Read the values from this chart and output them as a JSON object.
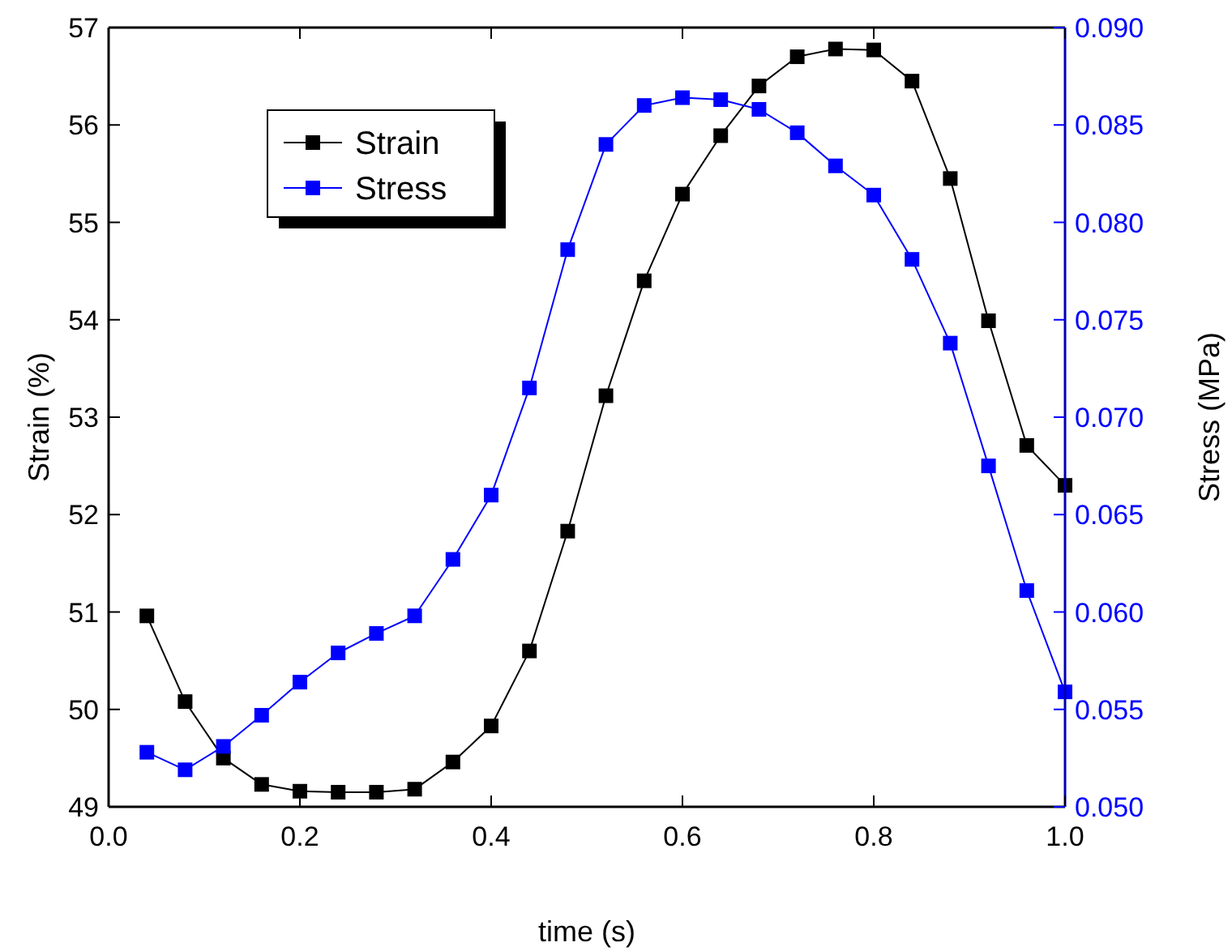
{
  "chart_data": {
    "type": "line",
    "xlabel": "time (s)",
    "ylabel": "Strain (%)",
    "y2label": "Stress (MPa)",
    "x": [
      0.04,
      0.08,
      0.12,
      0.16,
      0.2,
      0.24,
      0.28,
      0.32,
      0.36,
      0.4,
      0.44,
      0.48,
      0.52,
      0.56,
      0.6,
      0.64,
      0.68,
      0.72,
      0.76,
      0.8,
      0.84,
      0.88,
      0.92,
      0.96,
      1.0
    ],
    "series": [
      {
        "name": "Strain",
        "color": "#000000",
        "values": [
          50.96,
          50.08,
          49.5,
          49.23,
          49.16,
          49.15,
          49.15,
          49.18,
          49.46,
          49.83,
          50.6,
          51.83,
          53.22,
          54.4,
          55.29,
          55.89,
          56.4,
          56.7,
          56.78,
          56.77,
          56.45,
          55.45,
          53.99,
          52.71,
          52.3
        ]
      },
      {
        "name": "Stress",
        "color": "#0000ff",
        "axis": "y2",
        "values": [
          0.0528,
          0.0519,
          0.0531,
          0.0547,
          0.0564,
          0.0579,
          0.0589,
          0.0598,
          0.0627,
          0.066,
          0.0715,
          0.0786,
          0.084,
          0.086,
          0.0864,
          0.0863,
          0.0858,
          0.0846,
          0.0829,
          0.0814,
          0.0781,
          0.0738,
          0.0675,
          0.0611,
          0.0559
        ]
      }
    ],
    "xlim": [
      0,
      1
    ],
    "xticks": [
      {
        "value": 0,
        "label": "0.0"
      },
      {
        "value": 0.2,
        "label": "0.2"
      },
      {
        "value": 0.4,
        "label": "0.4"
      },
      {
        "value": 0.6,
        "label": "0.6"
      },
      {
        "value": 0.8,
        "label": "0.8"
      },
      {
        "value": 1,
        "label": "1.0"
      }
    ],
    "ylim": [
      49,
      57
    ],
    "yticks": [
      49,
      50,
      51,
      52,
      53,
      54,
      55,
      56,
      57
    ],
    "y2lim": [
      0.05,
      0.09
    ],
    "y2ticks": [
      {
        "value": 0.05,
        "label": "0.050"
      },
      {
        "value": 0.055,
        "label": "0.055"
      },
      {
        "value": 0.06,
        "label": "0.060"
      },
      {
        "value": 0.065,
        "label": "0.065"
      },
      {
        "value": 0.07,
        "label": "0.070"
      },
      {
        "value": 0.075,
        "label": "0.075"
      },
      {
        "value": 0.08,
        "label": "0.080"
      },
      {
        "value": 0.085,
        "label": "0.085"
      },
      {
        "value": 0.09,
        "label": "0.090"
      }
    ],
    "grid": false,
    "legend": "top left",
    "marker": "square",
    "line_style": "solid"
  }
}
